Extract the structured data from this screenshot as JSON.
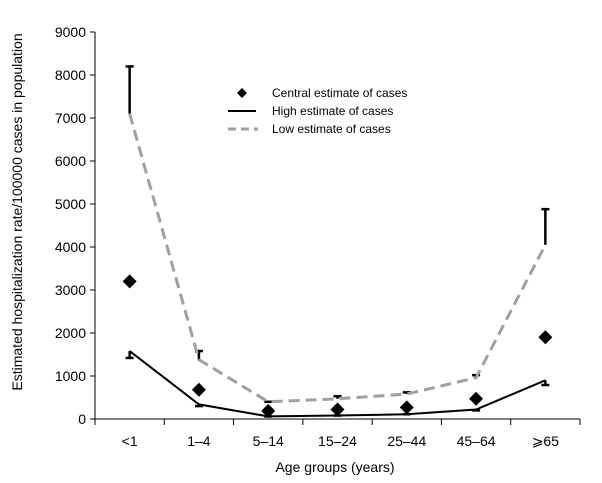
{
  "chart_data": {
    "type": "line",
    "title": "",
    "xlabel": "Age groups (years)",
    "ylabel": "Estimated hospitalization rate/100000 cases in population",
    "ylim": [
      0,
      9000
    ],
    "yticks": [
      0,
      1000,
      2000,
      3000,
      4000,
      5000,
      6000,
      7000,
      8000,
      9000
    ],
    "categories": [
      "<1",
      "1–4",
      "5–14",
      "15–24",
      "25–44",
      "45–64",
      "⩾65"
    ],
    "grid": false,
    "legend_position": "top-center",
    "series": [
      {
        "name": "Central estimate of cases",
        "style": "markers",
        "marker": "diamond",
        "color": "#000000",
        "values": [
          3200,
          680,
          190,
          220,
          270,
          470,
          1900
        ]
      },
      {
        "name": "High estimate of cases",
        "style": "solid",
        "color": "#000000",
        "values": [
          1580,
          340,
          60,
          80,
          110,
          220,
          900
        ]
      },
      {
        "name": "Low estimate of cases",
        "style": "dashed",
        "color": "#a0a0a0",
        "values": [
          7100,
          1380,
          400,
          470,
          580,
          960,
          4050
        ]
      }
    ],
    "error_bars": {
      "upper_from_low": [
        8200,
        1580,
        400,
        530,
        620,
        1020,
        4880
      ],
      "lower_from_high": [
        1420,
        300,
        60,
        80,
        110,
        200,
        790
      ]
    }
  }
}
